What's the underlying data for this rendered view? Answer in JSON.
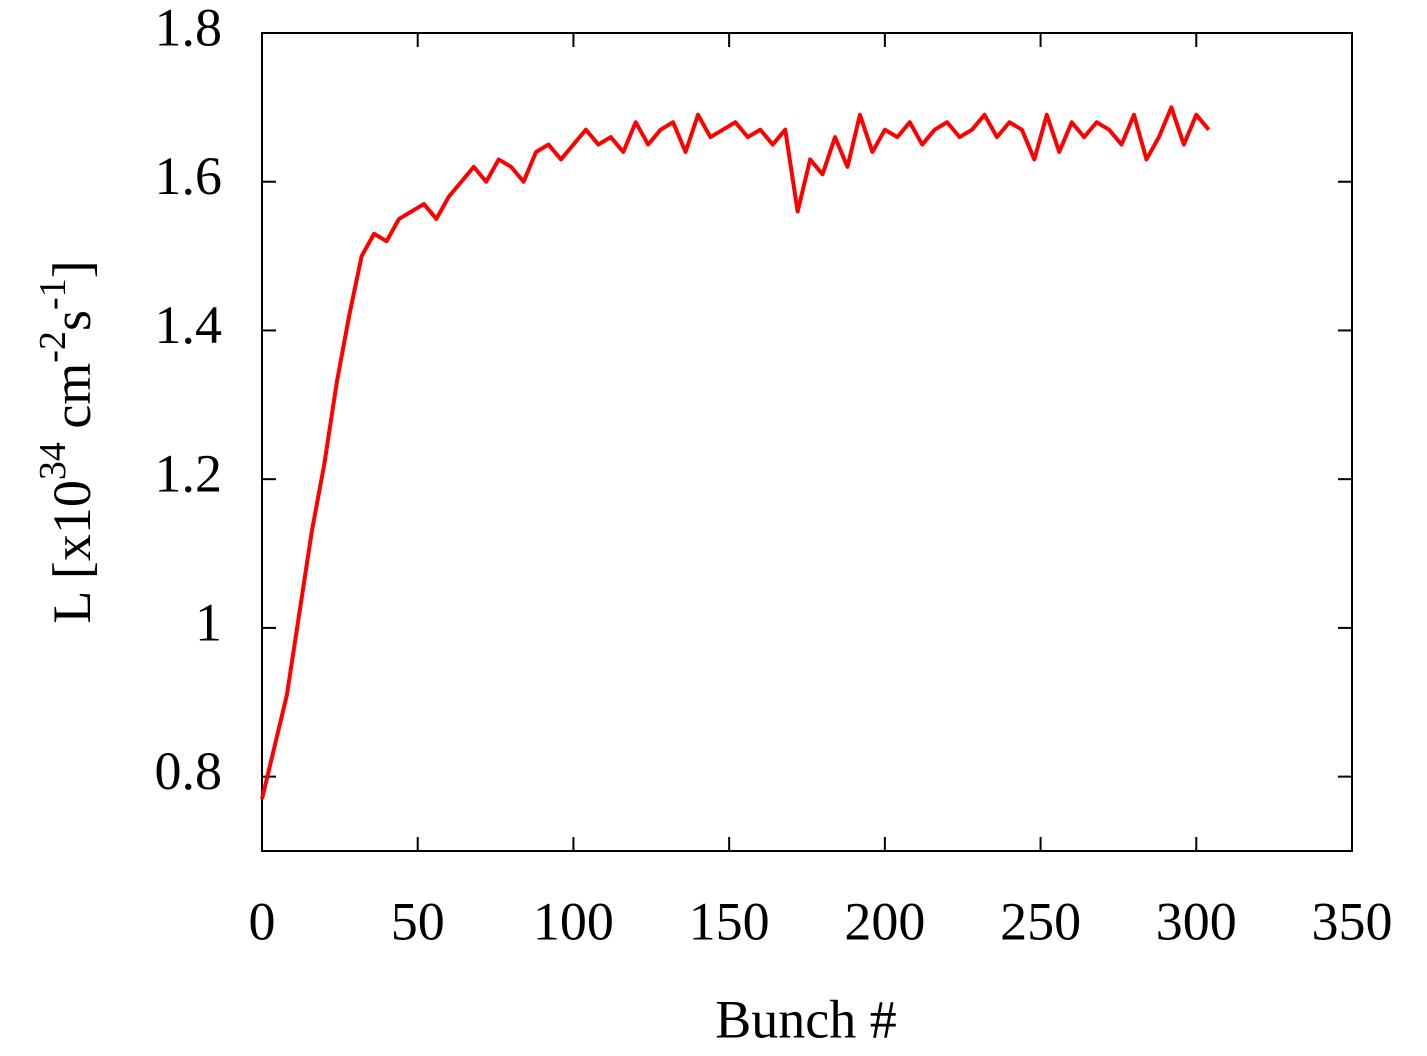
{
  "chart_data": {
    "type": "line",
    "xlabel": "Bunch #",
    "ylabel": {
      "parts": [
        "L [x10",
        "34",
        " cm",
        "-2",
        "s",
        "-1",
        "]"
      ]
    },
    "xlim": [
      0,
      350
    ],
    "ylim": [
      0.7,
      1.8
    ],
    "xticks": [
      0,
      50,
      100,
      150,
      200,
      250,
      300,
      350
    ],
    "yticks": [
      0.8,
      1,
      1.2,
      1.4,
      1.6,
      1.8
    ],
    "series": [
      {
        "color": "#ff0000",
        "x": [
          0,
          4,
          8,
          12,
          16,
          20,
          24,
          28,
          32,
          36,
          40,
          44,
          48,
          52,
          56,
          60,
          64,
          68,
          72,
          76,
          80,
          84,
          88,
          92,
          96,
          100,
          104,
          108,
          112,
          116,
          120,
          124,
          128,
          132,
          136,
          140,
          144,
          148,
          152,
          156,
          160,
          164,
          168,
          172,
          176,
          180,
          184,
          188,
          192,
          196,
          200,
          204,
          208,
          212,
          216,
          220,
          224,
          228,
          232,
          236,
          240,
          244,
          248,
          252,
          256,
          260,
          264,
          268,
          272,
          276,
          280,
          284,
          288,
          292,
          296,
          300,
          304
        ],
        "values": [
          0.77,
          0.84,
          0.91,
          1.02,
          1.13,
          1.22,
          1.33,
          1.42,
          1.5,
          1.53,
          1.52,
          1.55,
          1.56,
          1.57,
          1.55,
          1.58,
          1.6,
          1.62,
          1.6,
          1.63,
          1.62,
          1.6,
          1.64,
          1.65,
          1.63,
          1.65,
          1.67,
          1.65,
          1.66,
          1.64,
          1.68,
          1.65,
          1.67,
          1.68,
          1.64,
          1.69,
          1.66,
          1.67,
          1.68,
          1.66,
          1.67,
          1.65,
          1.67,
          1.56,
          1.63,
          1.61,
          1.66,
          1.62,
          1.69,
          1.64,
          1.67,
          1.66,
          1.68,
          1.65,
          1.67,
          1.68,
          1.66,
          1.67,
          1.69,
          1.66,
          1.68,
          1.67,
          1.63,
          1.69,
          1.64,
          1.68,
          1.66,
          1.68,
          1.67,
          1.65,
          1.69,
          1.63,
          1.66,
          1.7,
          1.65,
          1.69,
          1.67
        ]
      }
    ]
  }
}
